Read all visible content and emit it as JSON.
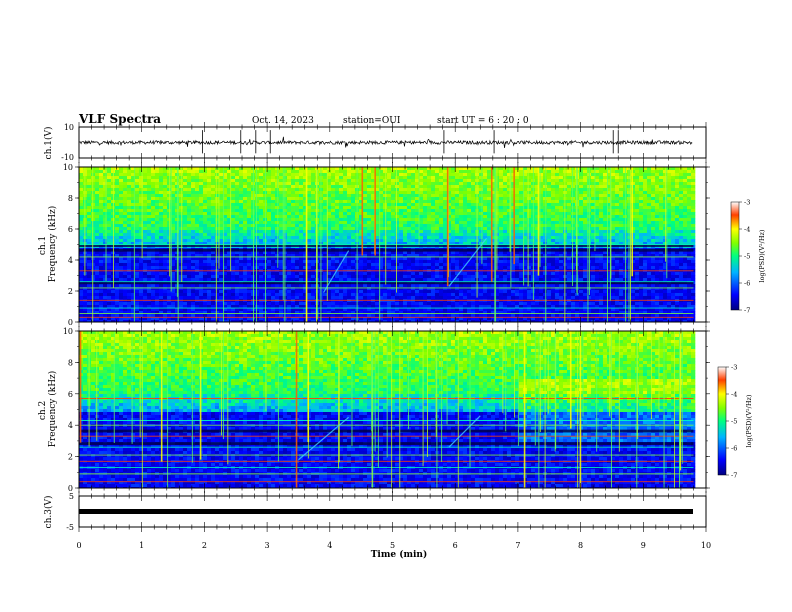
{
  "header": {
    "title": "VLF Spectra",
    "date": "Oct. 14, 2023",
    "station": "station=OUI",
    "start": "start  UT =  6 : 20 : 0"
  },
  "chart_data": [
    {
      "type": "line",
      "panel": "ch1-waveform",
      "ylabel": "ch.1(V)",
      "ylim": [
        -10,
        10
      ],
      "y_ticks": [
        "10",
        "-10"
      ],
      "x_unit": "min",
      "xlim": [
        0,
        10
      ],
      "baseline": 0,
      "spike_times_min": [
        1.97,
        2.58,
        2.82,
        3.05,
        5.82,
        6.62,
        8.52,
        8.6
      ]
    },
    {
      "type": "heatmap",
      "panel": "ch1-spectrogram",
      "ylabel": "ch.1\nFrequency (kHz)",
      "ylim": [
        0,
        10
      ],
      "y_ticks": [
        "0",
        "2",
        "4",
        "6",
        "8",
        "10"
      ],
      "xlim": [
        0,
        10
      ],
      "data_extent_min": 9.8,
      "colorbar": {
        "label": "log(PSD)(V²/Hz)",
        "range": [
          -7,
          -3
        ],
        "ticks": [
          "-3",
          "-4",
          "-5",
          "-6",
          "-7"
        ]
      },
      "hum_lines_khz": [
        0.3,
        0.55,
        0.9,
        1.4,
        2.2,
        2.6,
        3.3,
        4.2,
        5.0
      ],
      "emission_streaks": [
        {
          "x": [
            3.9,
            4.3
          ],
          "y": [
            1.9,
            4.6
          ]
        },
        {
          "x": [
            5.9,
            6.5
          ],
          "y": [
            2.3,
            5.4
          ]
        }
      ]
    },
    {
      "type": "heatmap",
      "panel": "ch2-spectrogram",
      "ylabel": "ch.2\nFrequency (kHz)",
      "ylim": [
        0,
        10
      ],
      "y_ticks": [
        "0",
        "2",
        "4",
        "6",
        "8",
        "10"
      ],
      "xlim": [
        0,
        10
      ],
      "data_extent_min": 9.8,
      "colorbar": {
        "label": "log(PSD)(V²/Hz)",
        "range": [
          -7,
          -3
        ],
        "ticks": [
          "-3",
          "-4",
          "-5",
          "-6",
          "-7"
        ]
      },
      "hum_lines_khz": [
        0.4,
        0.9,
        1.3,
        1.7,
        2.1,
        2.6,
        3.3,
        4.0,
        4.3,
        5.7
      ],
      "emission_streaks": [
        {
          "x": [
            3.5,
            4.3
          ],
          "y": [
            1.8,
            4.5
          ]
        },
        {
          "x": [
            5.9,
            6.4
          ],
          "y": [
            2.6,
            4.6
          ]
        }
      ]
    },
    {
      "type": "line",
      "panel": "ch3-waveform",
      "ylabel": "ch.3(V)",
      "ylim": [
        -5,
        5
      ],
      "y_ticks": [
        "5",
        "0",
        "-5"
      ],
      "xlim": [
        0,
        10
      ],
      "baseline": -1.2
    }
  ],
  "x_axis": {
    "label": "Time  (min)",
    "ticks": [
      "0",
      "1",
      "2",
      "3",
      "4",
      "5",
      "6",
      "7",
      "8",
      "9",
      "10"
    ]
  }
}
